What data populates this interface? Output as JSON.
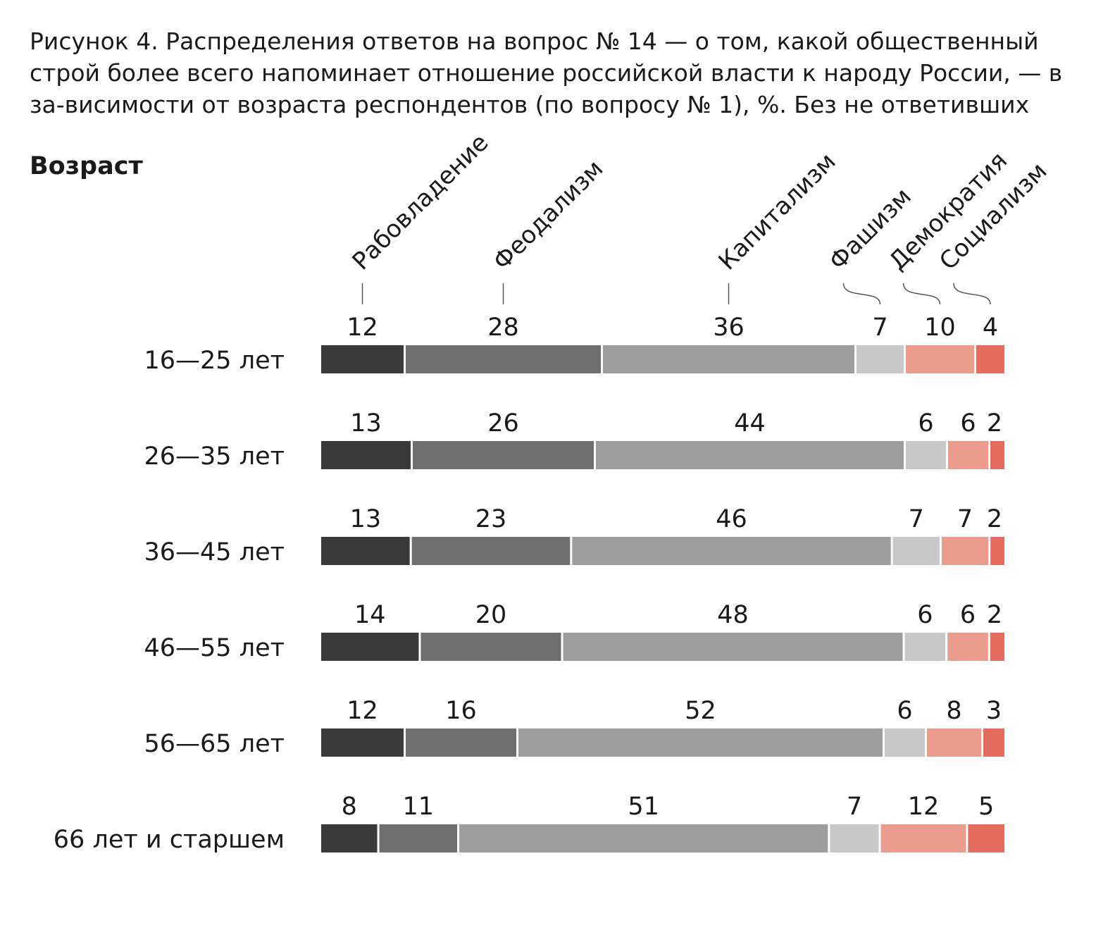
{
  "title": "Рисунок 4. Распределения ответов на вопрос № 14 — о том, какой общественный строй более всего напоминает отношение российской власти к народу России, — в за-висимости от возраста респондентов (по вопросу № 1), %. Без не ответивших",
  "group_label": "Возраст",
  "chart_data": {
    "type": "bar",
    "orientation": "horizontal",
    "stacked": true,
    "normalized": true,
    "title": "Рисунок 4. Распределения ответов на вопрос № 14 — о том, какой общественный строй более всего напоминает отношение российской власти к народу России, — в за-висимости от возраста респондентов (по вопросу № 1), %. Без не ответивших",
    "ylabel": "Возраст",
    "xlabel": "",
    "grid": false,
    "legend": "top",
    "categories": [
      "16—25 лет",
      "26—35 лет",
      "36—45 лет",
      "46—55 лет",
      "56—65 лет",
      "66 лет и старшем"
    ],
    "series": [
      {
        "name": "Рабовладение",
        "color": "#3a3a3a",
        "values": [
          12,
          13,
          13,
          14,
          12,
          8
        ]
      },
      {
        "name": "Феодализм",
        "color": "#6f6f6f",
        "values": [
          28,
          26,
          23,
          20,
          16,
          11
        ]
      },
      {
        "name": "Капитализм",
        "color": "#9d9d9d",
        "values": [
          36,
          44,
          46,
          48,
          52,
          51
        ]
      },
      {
        "name": "Фашизм",
        "color": "#c8c8c8",
        "values": [
          7,
          6,
          7,
          6,
          6,
          7
        ]
      },
      {
        "name": "Демократия",
        "color": "#ec9c8c",
        "values": [
          10,
          6,
          7,
          6,
          8,
          12
        ]
      },
      {
        "name": "Социализм",
        "color": "#e36c5e",
        "values": [
          4,
          2,
          2,
          2,
          3,
          5
        ]
      }
    ]
  }
}
